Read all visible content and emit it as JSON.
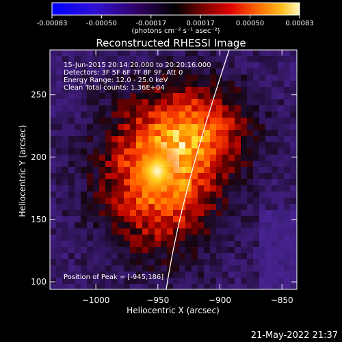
{
  "colorbar": {
    "ticks": [
      "-0.00083",
      "-0.00050",
      "-0.00017",
      "0.00017",
      "0.00050",
      "0.00083"
    ],
    "units_label": "(photons cm⁻² s⁻¹ asec⁻²)",
    "range": [
      -0.00083,
      0.00083
    ]
  },
  "plot": {
    "title": "Reconstructed RHESSI Image",
    "xlabel": "Heliocentric X (arcsec)",
    "ylabel": "Heliocentric Y (arcsec)",
    "info_lines": [
      "15-Jun-2015 20:14:20.000 to 20:20:16.000",
      "Detectors: 3F 5F 6F 7F 8F 9F, Att 0",
      "Energy Range: 12.0 - 25.0 keV",
      "Clean     Total counts: 1.36E+04"
    ],
    "peak_label": "Position of Peak = [-945,186]"
  },
  "timestamp": "21-May-2022 21:37",
  "chart_data": {
    "type": "heatmap",
    "title": "Reconstructed RHESSI Image",
    "xlabel": "Heliocentric X (arcsec)",
    "ylabel": "Heliocentric Y (arcsec)",
    "xlim": [
      -1037,
      -838
    ],
    "ylim": [
      94,
      286
    ],
    "x_ticks": [
      -1000,
      -950,
      -900,
      -850
    ],
    "x_tick_labels": [
      "−1000",
      "−950",
      "−900",
      "−850"
    ],
    "y_ticks": [
      100,
      150,
      200,
      250
    ],
    "color_range": [
      -0.00083,
      0.00083
    ],
    "peak": [
      -945,
      186
    ],
    "colormap": [
      "#0000ff",
      "#6a00b0",
      "#3a1a60",
      "#000000",
      "#5a0000",
      "#c00000",
      "#ff4000",
      "#ff9000",
      "#ffe060",
      "#ffffff"
    ]
  }
}
